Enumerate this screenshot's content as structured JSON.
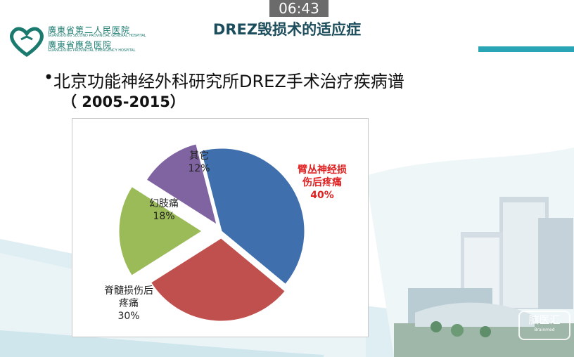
{
  "overlay": {
    "timer": "06:43"
  },
  "header": {
    "title": "DREZ毁损术的适应症",
    "hospital_cn_1": "廣東省第二人民医院",
    "hospital_en_1": "GUANGDONG SECOND PROVINCIAL GENERAL HOSPITAL",
    "hospital_cn_2": "廣東省應急医院",
    "hospital_en_2": "GUANGDONG PROVINCIAL EMERGENCY HOSPITAL"
  },
  "bullet": {
    "line1": "北京功能神经外科研究所DREZ手术治疗疾病谱",
    "line2": "（ 2005-2015）"
  },
  "chart_data": {
    "type": "pie",
    "slices": [
      {
        "label_line1": "臂丛神经损",
        "label_line2": "伤后疼痛",
        "pct_label": "40%",
        "value": 40,
        "color": "#3f6fad"
      },
      {
        "label_line1": "脊髓损伤后",
        "label_line2": "疼痛",
        "pct_label": "30%",
        "value": 30,
        "color": "#c0504d"
      },
      {
        "label_line1": "幻肢痛",
        "label_line2": "",
        "pct_label": "18%",
        "value": 18,
        "color": "#9bbb59"
      },
      {
        "label_line1": "其它",
        "label_line2": "",
        "pct_label": "12%",
        "value": 12,
        "color": "#8064a2"
      }
    ],
    "exploded": true,
    "legend": "none"
  },
  "watermark": {
    "main": "脑医汇",
    "sub": "Brainmed"
  },
  "colors": {
    "title": "#1c4d5c",
    "accent": "#2aa5b5",
    "highlight_label": "#e02020"
  }
}
